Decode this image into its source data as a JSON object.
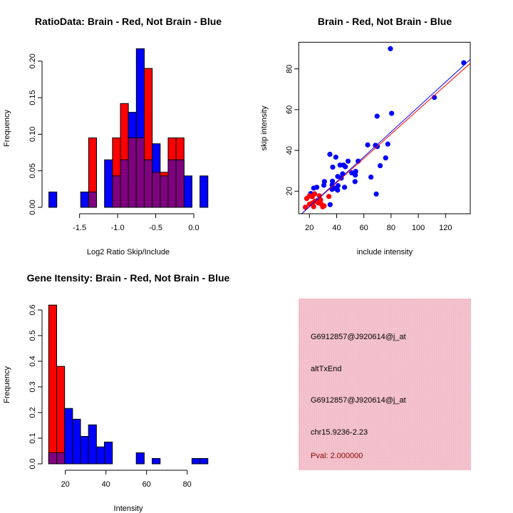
{
  "chart_data": [
    {
      "type": "bar",
      "title": "RatioData: Brain - Red, Not Brain - Blue",
      "xlabel": "Log2 Ratio Skip/Include",
      "ylabel": "Frequency",
      "xlim": [
        -1.903,
        0.185
      ],
      "ylim": [
        0,
        0.22
      ],
      "bin_start": -1.903,
      "bin_width": 0.1044,
      "xticks": [
        -1.5,
        -1.0,
        -0.5,
        0.0
      ],
      "xtick_labels": [
        "-1.5",
        "-1.0",
        "-0.5",
        "0.0"
      ],
      "yticks": [
        0,
        0.05,
        0.1,
        0.15,
        0.2
      ],
      "ytick_labels": [
        "0.00",
        "0.05",
        "0.10",
        "0.15",
        "0.20"
      ],
      "series": [
        {
          "name": "Brain",
          "color": "#ff0000",
          "values": [
            0,
            0,
            0,
            0,
            0,
            0.095,
            0,
            0,
            0.095,
            0.142,
            0.095,
            0.095,
            0.19,
            0.048,
            0.048,
            0.095,
            0.095,
            0,
            0,
            0
          ]
        },
        {
          "name": "Not Brain",
          "color": "#0000ff",
          "values": [
            0.021,
            0,
            0,
            0,
            0.021,
            0.021,
            0,
            0.065,
            0.043,
            0.065,
            0.13,
            0.217,
            0.065,
            0.087,
            0.043,
            0.065,
            0.065,
            0.043,
            0,
            0.043
          ]
        }
      ],
      "overlap_color": "#800080"
    },
    {
      "type": "scatter",
      "title": "Brain - Red, Not Brain - Blue",
      "xlabel": "include intensity",
      "ylabel": "skip intensity",
      "xlim": [
        12.1,
        138.2
      ],
      "ylim": [
        8.9,
        93.1
      ],
      "xticks": [
        20,
        40,
        60,
        80,
        100,
        120
      ],
      "yticks": [
        20,
        40,
        60,
        80
      ],
      "series": [
        {
          "name": "Not Brain",
          "color": "#0000ff",
          "points": [
            [
              79.5,
              89.9
            ],
            [
              133.4,
              83.0
            ],
            [
              111.8,
              66.0
            ],
            [
              69.7,
              56.8
            ],
            [
              80.4,
              58.2
            ],
            [
              62.8,
              42.7
            ],
            [
              68.5,
              42.5
            ],
            [
              69.9,
              41.9
            ],
            [
              77.6,
              43.1
            ],
            [
              76.0,
              36.3
            ],
            [
              72.0,
              32.5
            ],
            [
              65.2,
              26.9
            ],
            [
              69.1,
              18.6
            ],
            [
              35.0,
              38.1
            ],
            [
              39.4,
              36.7
            ],
            [
              37.1,
              31.8
            ],
            [
              42.5,
              32.8
            ],
            [
              45.0,
              32.8
            ],
            [
              46.4,
              32.0
            ],
            [
              48.4,
              34.7
            ],
            [
              55.8,
              34.7
            ],
            [
              51.1,
              29.0
            ],
            [
              54.0,
              29.7
            ],
            [
              53.7,
              27.9
            ],
            [
              53.5,
              24.7
            ],
            [
              44.4,
              28.5
            ],
            [
              43.4,
              26.4
            ],
            [
              40.8,
              27.2
            ],
            [
              45.8,
              21.9
            ],
            [
              41.0,
              22.7
            ],
            [
              40.7,
              20.5
            ],
            [
              36.9,
              24.9
            ],
            [
              36.7,
              23.1
            ],
            [
              36.6,
              20.9
            ],
            [
              38.3,
              21.4
            ],
            [
              31.0,
              24.7
            ],
            [
              30.6,
              22.9
            ],
            [
              35.2,
              13.4
            ],
            [
              25.4,
              21.9
            ],
            [
              23.1,
              21.5
            ],
            [
              21.0,
              18.8
            ],
            [
              25.6,
              15.3
            ]
          ],
          "fit": {
            "slope": 0.611,
            "intercept": 0.22
          }
        },
        {
          "name": "Brain",
          "color": "#ff0000",
          "points": [
            [
              17.0,
              12.1
            ],
            [
              18.0,
              16.4
            ],
            [
              20.0,
              17.7
            ],
            [
              22.1,
              17.3
            ],
            [
              23.8,
              18.7
            ],
            [
              20.0,
              13.6
            ],
            [
              22.1,
              14.2
            ],
            [
              23.1,
              12.4
            ],
            [
              24.0,
              15.0
            ],
            [
              27.3,
              17.7
            ],
            [
              28.2,
              15.7
            ],
            [
              28.6,
              13.7
            ],
            [
              29.8,
              12.3
            ],
            [
              30.8,
              12.8
            ],
            [
              34.3,
              17.4
            ],
            [
              26.5,
              14.2
            ]
          ],
          "fit": {
            "slope": 0.596,
            "intercept": 0.38
          }
        }
      ]
    },
    {
      "type": "bar",
      "title": "Gene Itensity: Brain - Red, Not Brain - Blue",
      "xlabel": "Intensity",
      "ylabel": "Frequency",
      "bin_start": 11.8,
      "bin_width": 3.92,
      "xticks": [
        20,
        40,
        60,
        80
      ],
      "xtick_labels": [
        "20",
        "40",
        "60",
        "80"
      ],
      "yticks": [
        0,
        0.1,
        0.2,
        0.3,
        0.4,
        0.5,
        0.6
      ],
      "ytick_labels": [
        "0.0",
        "0.1",
        "0.2",
        "0.3",
        "0.4",
        "0.5",
        "0.6"
      ],
      "ylim": [
        0,
        0.65
      ],
      "series": [
        {
          "name": "Brain",
          "color": "#ff0000",
          "values": [
            0.619,
            0.38,
            0,
            0,
            0,
            0,
            0,
            0,
            0,
            0,
            0,
            0,
            0,
            0,
            0,
            0,
            0,
            0,
            0,
            0
          ]
        },
        {
          "name": "Not Brain",
          "color": "#0000ff",
          "values": [
            0.043,
            0.043,
            0.216,
            0.174,
            0.107,
            0.152,
            0.066,
            0.085,
            0,
            0,
            0,
            0.043,
            0,
            0.021,
            0,
            0,
            0,
            0,
            0.021,
            0.021
          ]
        }
      ],
      "overlap_color": "#800080"
    }
  ],
  "info_panel": {
    "background": "#f4c2cc",
    "lines": [
      "G6912857@J920614@j_at",
      "altTxEnd",
      "G6912857@J920614@j_at",
      "chr15.9236-2.23"
    ],
    "pval": "Pval: 2.000000",
    "pval_color": "#8b0000"
  }
}
